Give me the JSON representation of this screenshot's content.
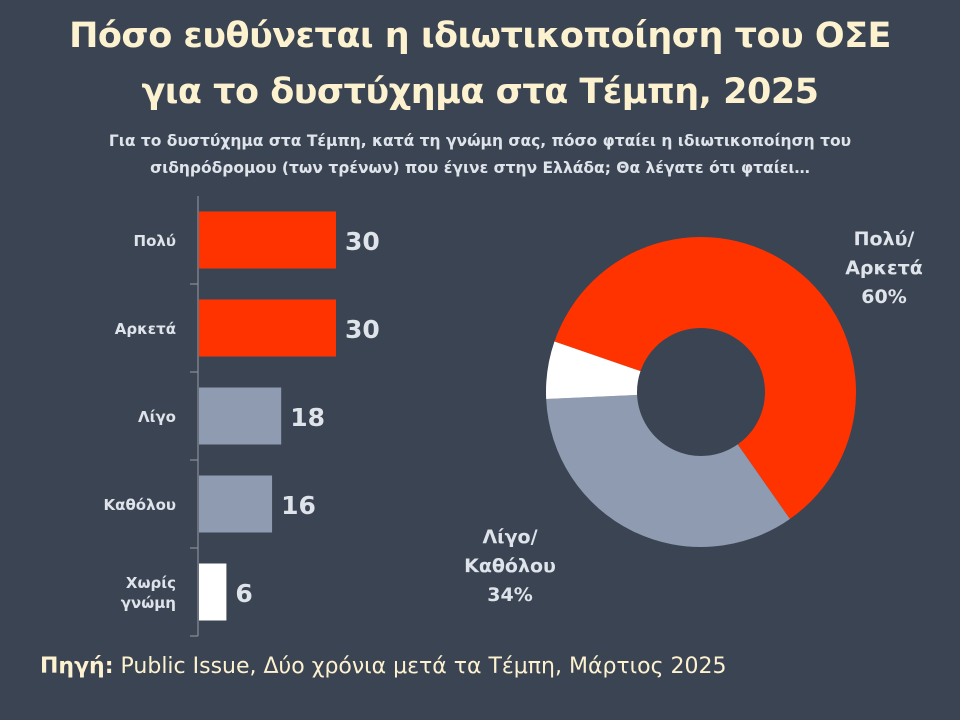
{
  "header": {
    "title_line1": "Πόσο ευθύνεται η ιδιωτικοποίηση του ΟΣΕ",
    "title_line2": "για το δυστύχημα στα Τέμπη, 2025",
    "subtitle_line1": "Για το δυστύχημα στα Τέμπη, κατά τη γνώμη σας, πόσο φταίει η ιδιωτικοποίηση του",
    "subtitle_line2": "σιδηρόδρομου (των τρένων) που έγινε στην Ελλάδα; Θα λέγατε ότι φταίει…"
  },
  "footer": {
    "source_label": "Πηγή:",
    "source_text": "Public Issue, Δύο χρόνια μετά τα Τέμπη, Μάρτιος 2025"
  },
  "colors": {
    "background": "#3b4453",
    "accent_red": "#ff3300",
    "grey": "#8e9bb0",
    "white": "#ffffff",
    "title": "#fdf2cf",
    "label": "#dfe3ea"
  },
  "chart_data": [
    {
      "type": "bar",
      "orientation": "horizontal",
      "categories": [
        [
          "Πολύ"
        ],
        [
          "Αρκετά"
        ],
        [
          "Λίγο"
        ],
        [
          "Καθόλου"
        ],
        [
          "Χωρίς",
          "γνώμη"
        ]
      ],
      "values": [
        30,
        30,
        18,
        16,
        6
      ],
      "colors": [
        "#ff3300",
        "#ff3300",
        "#8e9bb0",
        "#8e9bb0",
        "#ffffff"
      ],
      "data_labels": [
        "30",
        "30",
        "18",
        "16",
        "6"
      ],
      "xlim": [
        0,
        30
      ],
      "grid": false,
      "legend": "none"
    },
    {
      "type": "pie",
      "variant": "donut",
      "slices": [
        {
          "name": "Πολύ/Αρκετά",
          "value": 60,
          "color": "#ff3300",
          "label_lines": [
            "Πολύ/",
            "Αρκετά",
            "60%"
          ]
        },
        {
          "name": "Λίγο/Καθόλου",
          "value": 34,
          "color": "#8e9bb0",
          "label_lines": [
            "Λίγο/",
            "Καθόλου",
            "34%"
          ]
        },
        {
          "name": "Χωρίς γνώμη",
          "value": 6,
          "color": "#ffffff",
          "label_lines": []
        }
      ],
      "legend": "none"
    }
  ]
}
